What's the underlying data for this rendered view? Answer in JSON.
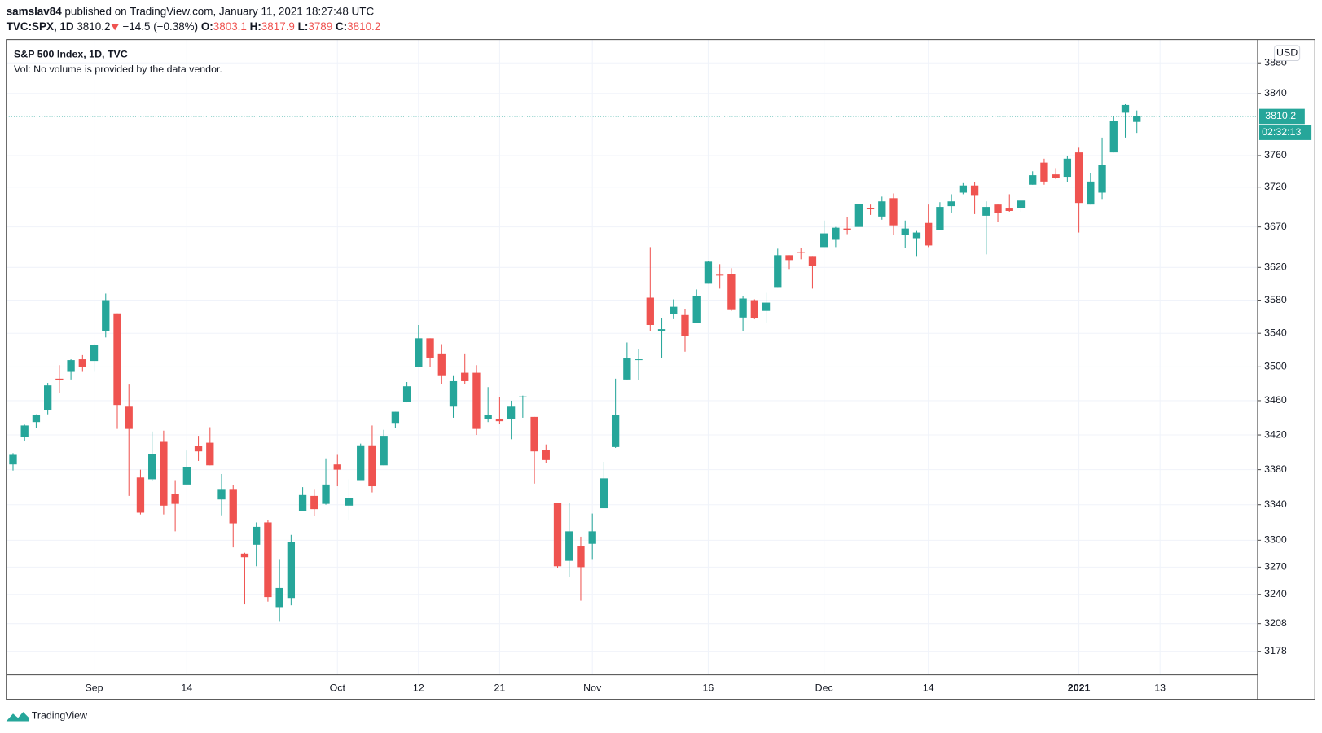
{
  "header": {
    "user": "samslav84",
    "published": "published on TradingView.com, January 11, 2021 18:27:48 UTC",
    "symbol": "TVC:SPX, 1D",
    "change": "−14.5 (−0.38%)",
    "o": "O:",
    "h": "H:",
    "l": "L:",
    "c": "C:"
  },
  "footer": {
    "brand": "TradingView"
  },
  "chart_data": {
    "type": "candlestick",
    "title": "S&P 500 Index, 1D, TVC",
    "subtitle": "Vol: No volume is provided by the data vendor.",
    "currency": "USD",
    "countdown": "02:32:13",
    "up_color": "#26a69a",
    "down_color": "#ef5350",
    "grid": true,
    "log_scale": true,
    "ylim": [
      3152.7,
      3910.8
    ],
    "yticks": [
      3178,
      3208,
      3240,
      3270,
      3300,
      3340,
      3380,
      3420,
      3460,
      3500,
      3540,
      3580,
      3620,
      3670,
      3720,
      3760,
      3840,
      3880
    ],
    "categories": [
      null,
      null,
      null,
      null,
      null,
      null,
      null,
      "Sep",
      null,
      null,
      null,
      null,
      null,
      null,
      null,
      "14",
      null,
      null,
      null,
      null,
      null,
      null,
      null,
      null,
      null,
      null,
      null,
      null,
      "Oct",
      null,
      null,
      null,
      null,
      null,
      null,
      "12",
      null,
      null,
      null,
      null,
      null,
      null,
      "21",
      null,
      null,
      null,
      null,
      null,
      null,
      null,
      "Nov",
      null,
      null,
      null,
      null,
      null,
      null,
      null,
      null,
      null,
      "16",
      null,
      null,
      null,
      null,
      null,
      null,
      null,
      null,
      null,
      "Dec",
      null,
      null,
      null,
      null,
      null,
      null,
      null,
      null,
      "14",
      null,
      null,
      null,
      null,
      null,
      null,
      null,
      null,
      null,
      null,
      null,
      null,
      "2021",
      null,
      null,
      null,
      null,
      null,
      null,
      "13"
    ],
    "open": [
      3386,
      3418,
      3435,
      3449,
      3486,
      3494,
      3509,
      3507,
      3543,
      3564,
      3453,
      3371,
      3369,
      3412,
      3352,
      3363,
      3407,
      3411,
      3346,
      3357,
      3285,
      3295,
      3320,
      3226,
      3236,
      3333,
      3350,
      3341,
      3386,
      3339,
      3368,
      3408,
      3385,
      3434,
      3459,
      3500,
      3534,
      3515,
      3453,
      3493,
      3493,
      3439,
      3439,
      3439,
      3464,
      3441,
      3403,
      3342,
      3277,
      3293,
      3296,
      3336,
      3406,
      3485,
      3508,
      3583,
      3543,
      3563,
      3562,
      3552,
      3600,
      3611,
      3612,
      3559,
      3580,
      3567,
      3595,
      3635,
      3639,
      3634,
      3645,
      3654,
      3668,
      3670,
      3694,
      3683,
      3706,
      3660,
      3656,
      3675,
      3666,
      3696,
      3713,
      3722,
      3684,
      3698,
      3693,
      3694,
      3723,
      3751,
      3736,
      3733,
      3764,
      3698,
      3713,
      3764,
      3815,
      3803.1,
      null,
      null
    ],
    "high": [
      3399,
      3432,
      3444,
      3481,
      3502,
      3509,
      3514,
      3528,
      3588,
      3564,
      3479,
      3380,
      3424,
      3425,
      3368,
      3402,
      3419,
      3429,
      3375,
      3362,
      3286,
      3320,
      3323,
      3279,
      3306,
      3360,
      3357,
      3393,
      3397,
      3369,
      3410,
      3431,
      3426,
      3447,
      3482,
      3550,
      3534,
      3527,
      3489,
      3515,
      3502,
      3476,
      3464,
      3460,
      3466,
      3441,
      3409,
      3342,
      3342,
      3304,
      3330,
      3389,
      3486,
      3529,
      3521,
      3645,
      3558,
      3581,
      3569,
      3593,
      3628,
      3624,
      3619,
      3585,
      3581,
      3589,
      3643,
      3635,
      3644,
      3634,
      3678,
      3670,
      3682,
      3699,
      3698,
      3708,
      3712,
      3678,
      3665,
      3698,
      3701,
      3711,
      3725,
      3726,
      3702,
      3698,
      3711,
      3703,
      3740,
      3756,
      3744,
      3760,
      3770,
      3738,
      3783,
      3811,
      3826,
      3817.9,
      null,
      null
    ],
    "low": [
      3379,
      3413,
      3428,
      3444,
      3469,
      3485,
      3494,
      3494,
      3535,
      3427,
      3350,
      3329,
      3367,
      3329,
      3310,
      3363,
      3390,
      3385,
      3328,
      3292,
      3229,
      3271,
      3232,
      3210,
      3228,
      3333,
      3327,
      3340,
      3361,
      3323,
      3368,
      3354,
      3385,
      3428,
      3458,
      3500,
      3500,
      3480,
      3440,
      3480,
      3420,
      3435,
      3433,
      3415,
      3440,
      3364,
      3388,
      3269,
      3259,
      3233,
      3279,
      3336,
      3405,
      3485,
      3484,
      3543,
      3511,
      3557,
      3518,
      3552,
      3600,
      3594,
      3567,
      3543,
      3557,
      3553,
      3595,
      3618,
      3630,
      3594,
      3645,
      3645,
      3661,
      3670,
      3685,
      3679,
      3660,
      3644,
      3634,
      3645,
      3666,
      3688,
      3711,
      3686,
      3636,
      3676,
      3689,
      3689,
      3723,
      3723,
      3730,
      3726,
      3663,
      3698,
      3705,
      3764,
      3783,
      3789.0,
      null,
      null
    ],
    "close": [
      3397,
      3431,
      3443,
      3478,
      3484,
      3508,
      3500,
      3526,
      3580,
      3455,
      3427,
      3331,
      3398,
      3339,
      3341,
      3383,
      3401,
      3385,
      3357,
      3319,
      3281,
      3315,
      3237,
      3247,
      3298,
      3351,
      3335,
      3363,
      3380,
      3348,
      3408,
      3361,
      3419,
      3447,
      3477,
      3534,
      3511,
      3489,
      3483,
      3483,
      3427,
      3443,
      3436,
      3453,
      3465,
      3401,
      3391,
      3271,
      3310,
      3270,
      3310,
      3370,
      3443,
      3510,
      3509,
      3550,
      3545,
      3572,
      3537,
      3585,
      3627,
      3610,
      3568,
      3582,
      3558,
      3577,
      3635,
      3629,
      3638,
      3622,
      3662,
      3669,
      3666,
      3699,
      3692,
      3702,
      3672,
      3668,
      3663,
      3647,
      3695,
      3702,
      3722,
      3709,
      3695,
      3687,
      3690,
      3703,
      3735,
      3727,
      3732,
      3756,
      3700,
      3727,
      3748,
      3804,
      3825,
      3810.2,
      null,
      null
    ]
  }
}
